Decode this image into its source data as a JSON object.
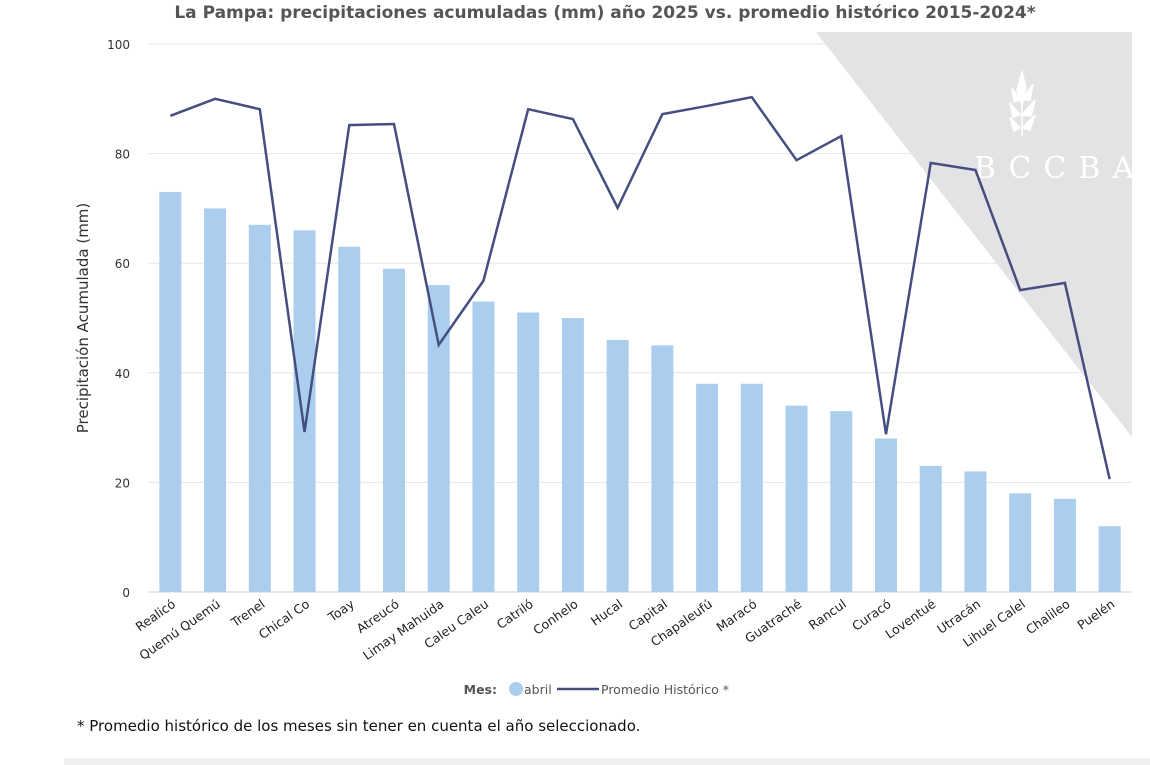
{
  "chart_data": {
    "type": "bar+line",
    "title": "La Pampa: precipitaciones acumuladas (mm) año 2025 vs. promedio histórico 2015-2024*",
    "ylabel": "Precipitación Acumulada (mm)",
    "xlabel": "",
    "ylim": [
      0,
      100
    ],
    "yticks": [
      0,
      20,
      40,
      60,
      80,
      100
    ],
    "grid": true,
    "legend_position": "bottom",
    "legend_title": "Mes:",
    "categories": [
      "Realicó",
      "Quemú Quemú",
      "Trenel",
      "Chical Co",
      "Toay",
      "Atreucó",
      "Limay Mahuida",
      "Caleu Caleu",
      "Catriló",
      "Conhelo",
      "Hucal",
      "Capital",
      "Chapaleufú",
      "Maracó",
      "Guatraché",
      "Rancul",
      "Curacó",
      "Loventué",
      "Utracán",
      "Lihuel Calel",
      "Chalileo",
      "Puelén"
    ],
    "series": [
      {
        "name": "abril",
        "type": "bar",
        "color": "#abcdee",
        "values": [
          73,
          70,
          67,
          66,
          63,
          59,
          56,
          53,
          51,
          50,
          46,
          45,
          38,
          38,
          34,
          33,
          28,
          23,
          22,
          18,
          17,
          12
        ]
      },
      {
        "name": "Promedio Histórico *",
        "type": "line",
        "color": "#444f80",
        "values": [
          86.9,
          90,
          88.1,
          29.2,
          85.2,
          85.4,
          45.1,
          56.8,
          88.1,
          86.3,
          70.1,
          87.2,
          88.7,
          90.3,
          78.8,
          83.2,
          28.8,
          78.3,
          77,
          55.1,
          56.4,
          20.6
        ]
      }
    ]
  },
  "watermark": "BCCBA",
  "footnote": "* Promedio histórico de los meses sin tener en cuenta el año seleccionado."
}
